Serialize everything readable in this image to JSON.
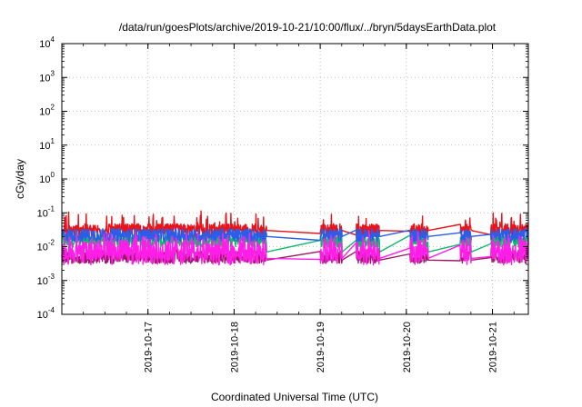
{
  "chart_data": {
    "type": "line",
    "title": "/data/run/goesPlots/archive/2019-10-21/10:00/flux/../bryn/5daysEarthData.plot",
    "xlabel": "Coordinated Universal Time (UTC)",
    "ylabel": "cGy/day",
    "yscale": "log",
    "ylim": [
      0.0001,
      10000
    ],
    "y_ticks": [
      {
        "base": "10",
        "exp": "4"
      },
      {
        "base": "10",
        "exp": "3"
      },
      {
        "base": "10",
        "exp": "2"
      },
      {
        "base": "10",
        "exp": "1"
      },
      {
        "base": "10",
        "exp": "0"
      },
      {
        "base": "10",
        "exp": "-1"
      },
      {
        "base": "10",
        "exp": "-2"
      },
      {
        "base": "10",
        "exp": "-3"
      },
      {
        "base": "10",
        "exp": "-4"
      }
    ],
    "xlim": [
      "2019-10-16 00:00",
      "2019-10-21 10:00"
    ],
    "x_ticks": [
      "2019-10-17",
      "2019-10-18",
      "2019-10-19",
      "2019-10-20",
      "2019-10-21"
    ],
    "grid": true,
    "gaps": [
      [
        "2019-10-18 09:00",
        "2019-10-19 00:00"
      ],
      [
        "2019-10-19 06:00",
        "2019-10-19 10:00"
      ],
      [
        "2019-10-19 16:30",
        "2019-10-20 01:00"
      ],
      [
        "2019-10-20 06:00",
        "2019-10-20 15:00"
      ],
      [
        "2019-10-20 18:00",
        "2019-10-20 23:30"
      ]
    ],
    "series": [
      {
        "color": "#e8141b",
        "typical": 0.03,
        "spike_max": 0.08
      },
      {
        "color": "#12b86b",
        "typical": 0.015,
        "quiet_level": 0.007
      },
      {
        "color": "#2a5ee8",
        "typical": 0.022,
        "quiet_level": 0.02
      },
      {
        "color": "#9a1a6a",
        "typical": 0.005,
        "quiet_level": 0.004
      },
      {
        "color": "#ff1ee8",
        "typical": 0.006,
        "quiet_level": 0.0045,
        "spike_max": 0.02
      }
    ]
  }
}
